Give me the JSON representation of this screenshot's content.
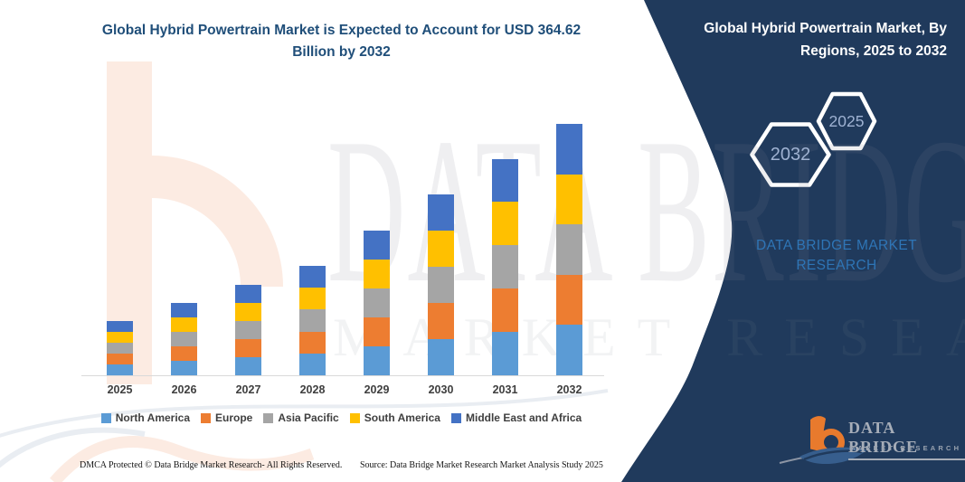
{
  "header": {
    "main_title": "Global Hybrid Powertrain Market is Expected to Account for USD 364.62 Billion by 2032",
    "panel_title": "Global Hybrid Powertrain Market, By Regions, 2025 to 2032"
  },
  "panel": {
    "hexagon_back": "2032",
    "hexagon_front": "2025",
    "brand_line1": "DATA BRIDGE MARKET",
    "brand_line2": "RESEARCH",
    "logo_name": "DATA BRIDGE",
    "logo_subtitle": "MARKET RESEARCH"
  },
  "watermark": {
    "line1": "DATA BRIDGE",
    "line2": "MARKET RESEARCH"
  },
  "footer": {
    "dmca": "DMCA Protected © Data Bridge Market Research-  All Rights Reserved.",
    "source": "Source: Data Bridge Market Research  Market Analysis Study 2025"
  },
  "colors": {
    "panel_navy": "#203a5c",
    "title_blue": "#1f4e79",
    "brand_blue": "#2e75b6",
    "logo_orange": "#e87a2d",
    "watermark_peach": "#fcebe2"
  },
  "chart_data": {
    "type": "bar",
    "stacked": true,
    "unit": "USD Billion",
    "categories": [
      "2025",
      "2026",
      "2027",
      "2028",
      "2029",
      "2030",
      "2031",
      "2032"
    ],
    "series": [
      {
        "name": "North America",
        "color": "#5B9BD5",
        "values": [
          15.8,
          21.0,
          26.4,
          31.8,
          42.0,
          52.4,
          62.8,
          72.92
        ]
      },
      {
        "name": "Europe",
        "color": "#ED7D31",
        "values": [
          15.8,
          21.0,
          26.4,
          31.8,
          42.0,
          52.4,
          62.8,
          72.92
        ]
      },
      {
        "name": "Asia Pacific",
        "color": "#A5A5A5",
        "values": [
          15.8,
          21.0,
          26.4,
          31.8,
          42.0,
          52.4,
          62.8,
          72.92
        ]
      },
      {
        "name": "South America",
        "color": "#FFC000",
        "values": [
          15.8,
          21.0,
          26.4,
          31.8,
          42.0,
          52.4,
          62.8,
          72.92
        ]
      },
      {
        "name": "Middle East and Africa",
        "color": "#4472C4",
        "values": [
          15.8,
          21.0,
          26.4,
          31.8,
          42.0,
          52.4,
          62.8,
          72.92
        ]
      }
    ],
    "totals_estimated": [
      79,
      105,
      132,
      159,
      210,
      262,
      314,
      364.62
    ],
    "xlabel": "",
    "ylabel": "",
    "ylim": [
      0,
      380
    ],
    "grid": false,
    "legend_position": "bottom",
    "note": "No numeric data labels are shown in the image; totals estimated from bar heights, five regional segments are approximately equal per year; 2032 total anchored to USD 364.62 billion stated in the title."
  }
}
